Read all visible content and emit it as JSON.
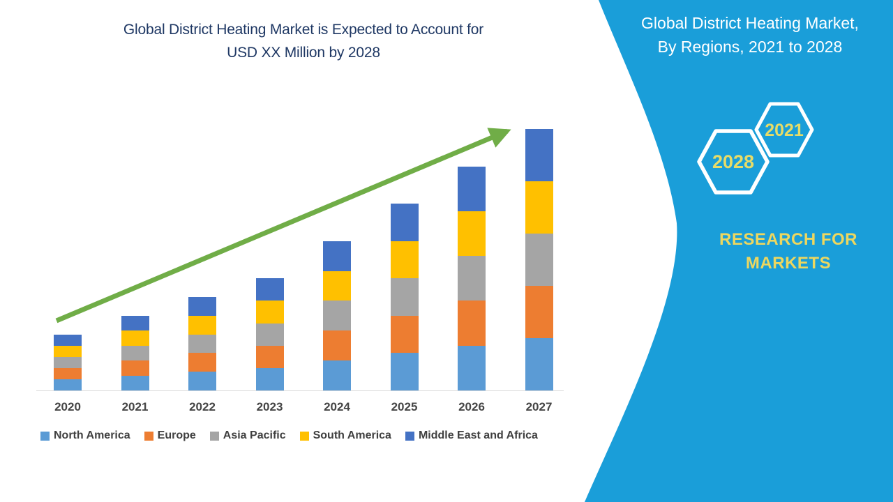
{
  "chart_data": {
    "type": "bar",
    "stacked": true,
    "title": "Global District Heating Market is Expected to Account for USD XX Million by 2028",
    "title_lines": [
      "Global District Heating Market is Expected to Account for",
      "USD XX Million by 2028"
    ],
    "title_color": "#1F3864",
    "categories": [
      "2020",
      "2021",
      "2022",
      "2023",
      "2024",
      "2025",
      "2026",
      "2027"
    ],
    "series": [
      {
        "name": "North America",
        "color": "#5B9BD5",
        "values": [
          0.3,
          0.4,
          0.5,
          0.6,
          0.8,
          1.0,
          1.2,
          1.4
        ]
      },
      {
        "name": "Europe",
        "color": "#ED7D31",
        "values": [
          0.3,
          0.4,
          0.5,
          0.6,
          0.8,
          1.0,
          1.2,
          1.4
        ]
      },
      {
        "name": "Asia Pacific",
        "color": "#A5A5A5",
        "values": [
          0.3,
          0.4,
          0.5,
          0.6,
          0.8,
          1.0,
          1.2,
          1.4
        ]
      },
      {
        "name": "South America",
        "color": "#FFC000",
        "values": [
          0.3,
          0.4,
          0.5,
          0.6,
          0.8,
          1.0,
          1.2,
          1.4
        ]
      },
      {
        "name": "Middle East and Africa",
        "color": "#4472C4",
        "values": [
          0.3,
          0.4,
          0.5,
          0.6,
          0.8,
          1.0,
          1.2,
          1.4
        ]
      }
    ],
    "totals": [
      1.5,
      2.0,
      2.5,
      3.0,
      4.0,
      5.0,
      6.0,
      7.0
    ],
    "unit": "USD XX Million",
    "xlabel": "",
    "ylabel": "",
    "ylim": [
      0,
      7.5
    ],
    "grid": false,
    "y_axis": "hidden",
    "legend_position": "bottom",
    "xtick_color": "#454545",
    "legend_text_color": "#404040",
    "axis_line_color": "#D9D9D9",
    "annotations": {
      "trend_arrow": {
        "color": "#70AD47",
        "x1": 81,
        "y1": 460,
        "x2": 727,
        "y2": 188,
        "width": 7
      }
    }
  },
  "side_panel": {
    "background_color": "#1A9ED9",
    "title": "Global District Heating Market, By Regions, 2021 to 2028",
    "title_lines": [
      "Global District Heating Market,",
      "By Regions, 2021 to 2028"
    ],
    "title_color": "#FFFFFF",
    "hexagon_badges": [
      {
        "label": "2028"
      },
      {
        "label": "2021"
      }
    ],
    "badge_border_color": "#FFFFFF",
    "badge_text_color": "#E7DC68",
    "brand_lines": [
      "RESEARCH FOR",
      "MARKETS"
    ],
    "brand_text_color": "#EDD75F"
  }
}
